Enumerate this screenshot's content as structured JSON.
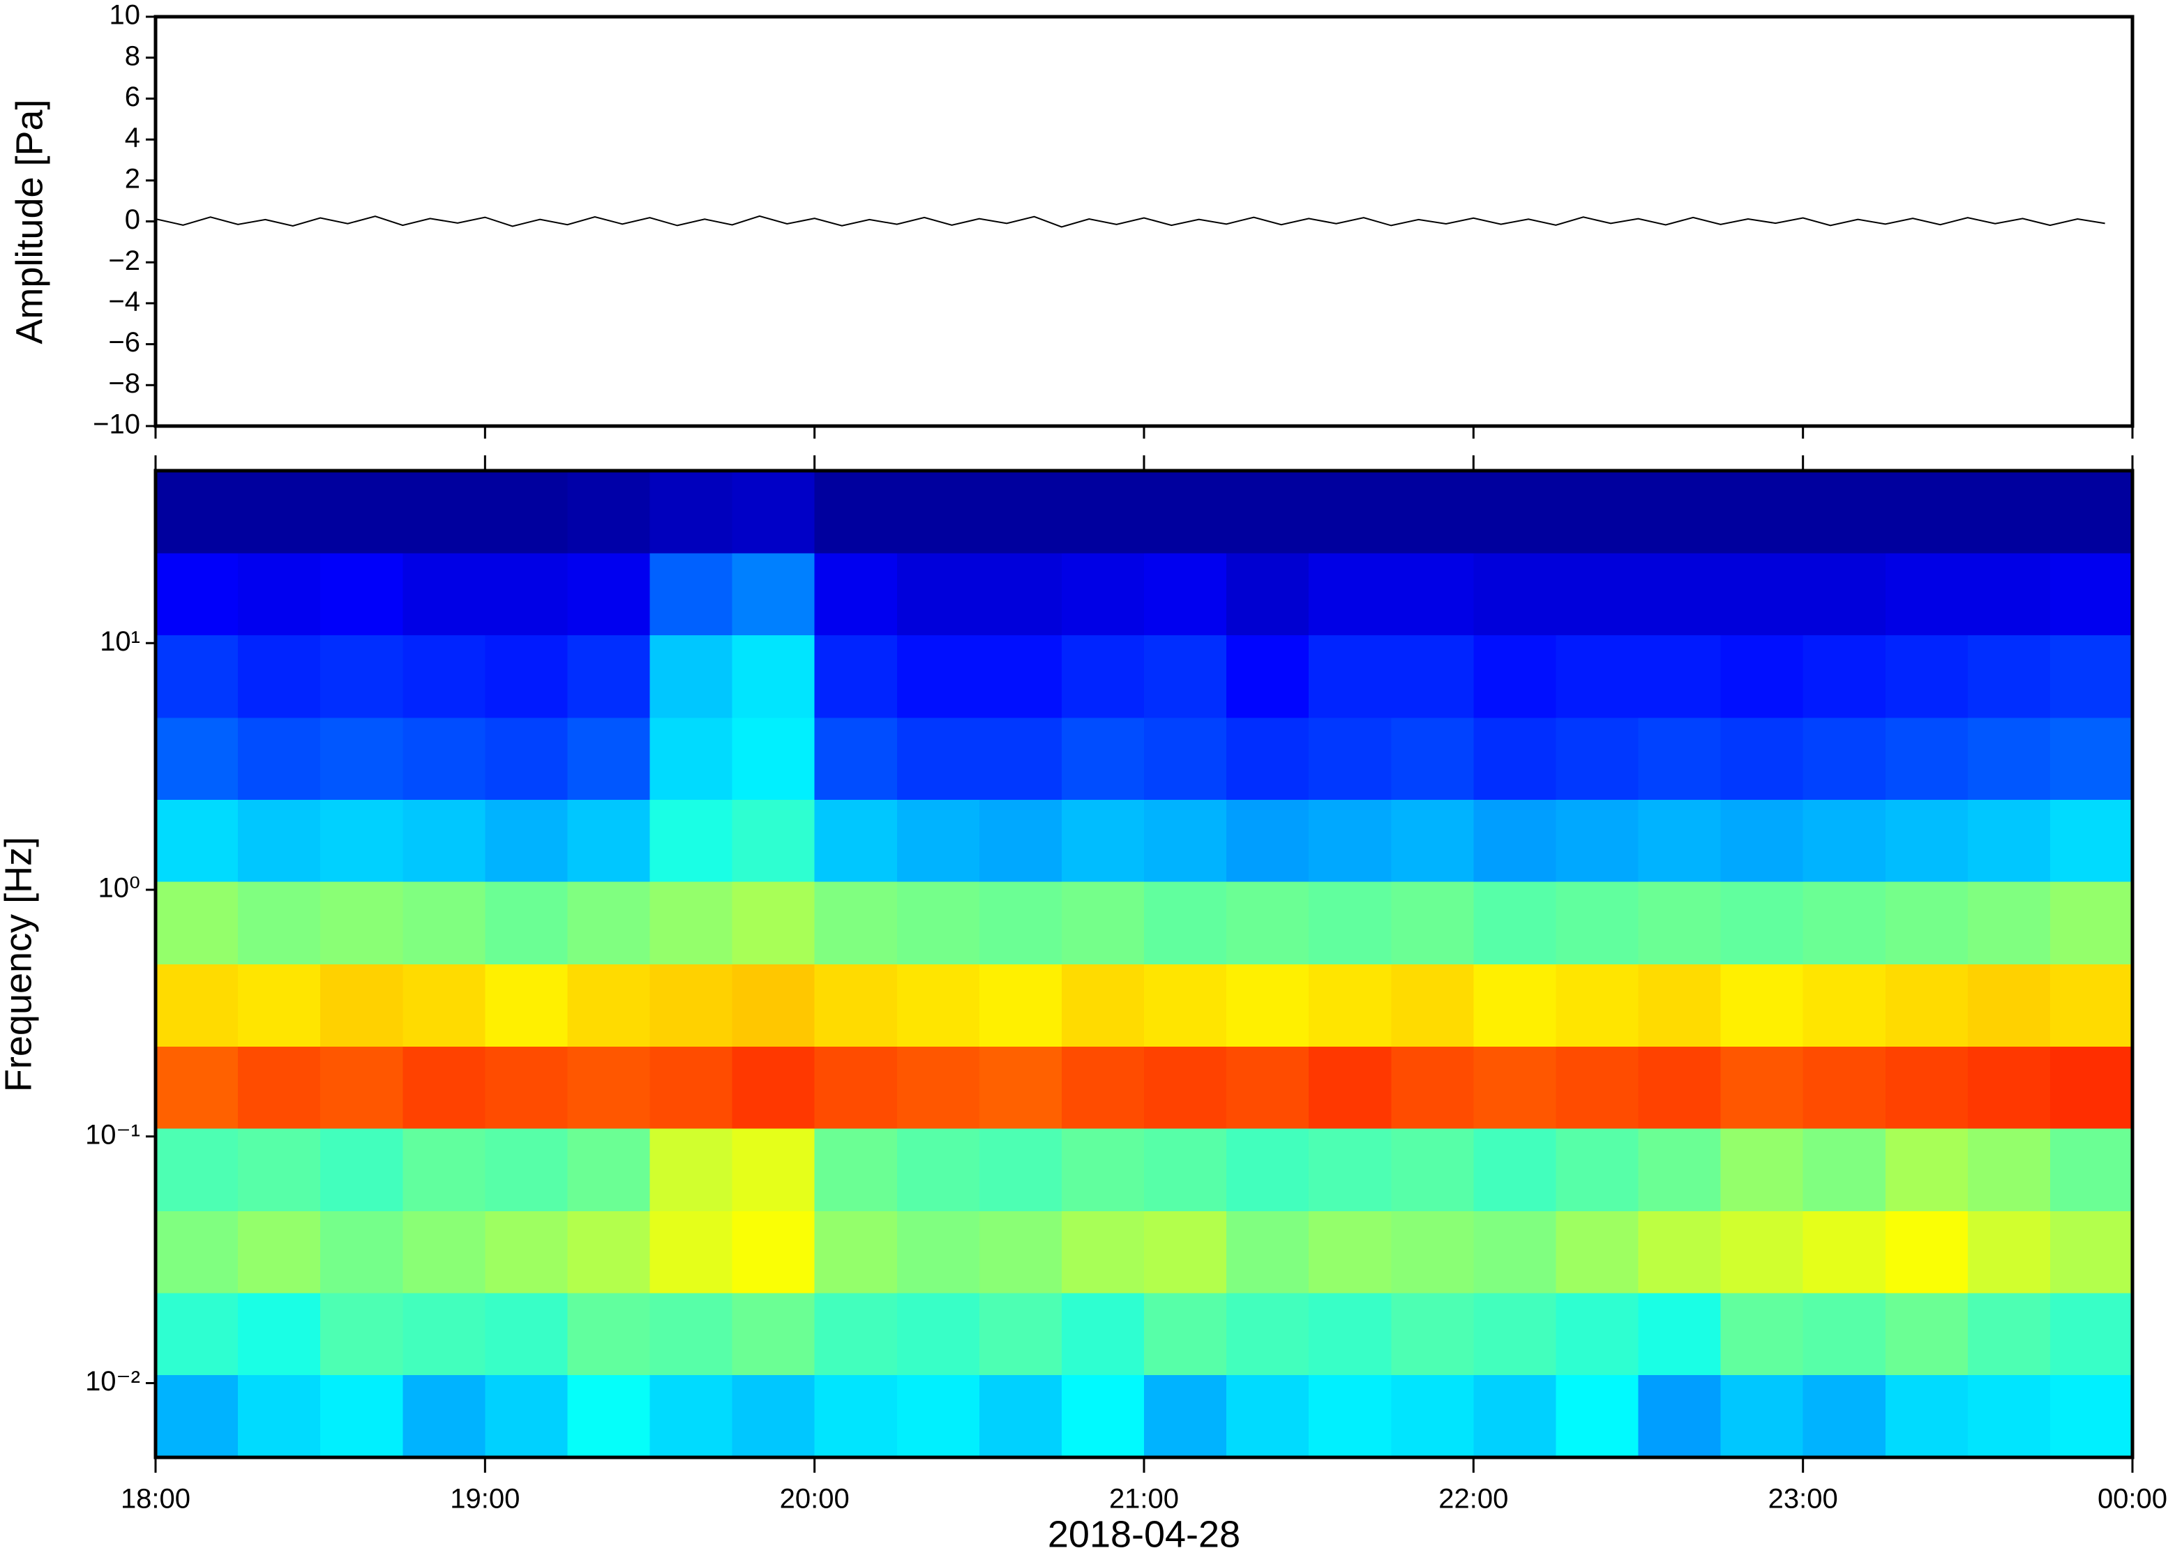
{
  "chart_data": [
    {
      "type": "line",
      "ylabel": "Amplitude [Pa]",
      "xlim": [
        0,
        360
      ],
      "ylim": [
        -10,
        10
      ],
      "yticks": [
        {
          "value": -10,
          "label": "−10"
        },
        {
          "value": -8,
          "label": "−8"
        },
        {
          "value": -6,
          "label": "−6"
        },
        {
          "value": -4,
          "label": "−4"
        },
        {
          "value": -2,
          "label": "−2"
        },
        0,
        2,
        4,
        6,
        8,
        10
      ],
      "x": [
        0,
        5,
        10,
        15,
        20,
        25,
        30,
        35,
        40,
        45,
        50,
        55,
        60,
        65,
        70,
        75,
        80,
        85,
        90,
        95,
        100,
        105,
        110,
        115,
        120,
        125,
        130,
        135,
        140,
        145,
        150,
        155,
        160,
        165,
        170,
        175,
        180,
        185,
        190,
        195,
        200,
        205,
        210,
        215,
        220,
        225,
        230,
        235,
        240,
        245,
        250,
        255,
        260,
        265,
        270,
        275,
        280,
        285,
        290,
        295,
        300,
        305,
        310,
        315,
        320,
        325,
        330,
        335,
        340,
        345,
        350,
        355
      ],
      "series": [
        {
          "color": "#000000",
          "values": [
            0.12,
            -0.18,
            0.21,
            -0.15,
            0.09,
            -0.22,
            0.17,
            -0.11,
            0.25,
            -0.19,
            0.14,
            -0.08,
            0.2,
            -0.24,
            0.1,
            -0.16,
            0.22,
            -0.13,
            0.18,
            -0.2,
            0.11,
            -0.17,
            0.26,
            -0.12,
            0.15,
            -0.21,
            0.09,
            -0.14,
            0.19,
            -0.18,
            0.13,
            -0.1,
            0.23,
            -0.27,
            0.12,
            -0.15,
            0.17,
            -0.19,
            0.1,
            -0.13,
            0.2,
            -0.16,
            0.14,
            -0.11,
            0.18,
            -0.2,
            0.09,
            -0.12,
            0.16,
            -0.14,
            0.11,
            -0.18,
            0.21,
            -0.1,
            0.13,
            -0.17,
            0.19,
            -0.15,
            0.12,
            -0.09,
            0.17,
            -0.2,
            0.1,
            -0.13,
            0.15,
            -0.16,
            0.18,
            -0.11,
            0.14,
            -0.19,
            0.12,
            -0.1
          ]
        }
      ]
    },
    {
      "type": "heatmap",
      "ylabel": "Frequency [Hz]",
      "xlabel": "2018-04-28",
      "xlim": [
        0,
        360
      ],
      "xticks": [
        {
          "value": 0,
          "label": "18:00"
        },
        {
          "value": 60,
          "label": "19:00"
        },
        {
          "value": 120,
          "label": "20:00"
        },
        {
          "value": 180,
          "label": "21:00"
        },
        {
          "value": 240,
          "label": "22:00"
        },
        {
          "value": 300,
          "label": "23:00"
        },
        {
          "value": 360,
          "label": "00:00"
        }
      ],
      "yscale": "log",
      "ylim": [
        0.005,
        50
      ],
      "yticks": [
        {
          "value": 0.01,
          "label": "10⁻²"
        },
        {
          "value": 0.1,
          "label": "10⁻¹"
        },
        {
          "value": 1,
          "label": "10⁰"
        },
        {
          "value": 10,
          "label": "10¹"
        }
      ],
      "colormap": "jet",
      "zlim": [
        0,
        1
      ],
      "xbins": [
        0,
        15,
        30,
        45,
        60,
        75,
        90,
        105,
        120,
        135,
        150,
        165,
        180,
        195,
        210,
        225,
        240,
        255,
        270,
        285,
        300,
        315,
        330,
        345,
        360
      ],
      "ybins": [
        0.005,
        0.0108,
        0.0232,
        0.05,
        0.108,
        0.232,
        0.5,
        1.08,
        2.32,
        5,
        10.8,
        23.2,
        50
      ],
      "values": [
        [
          0.3,
          0.34,
          0.36,
          0.3,
          0.33,
          0.38,
          0.34,
          0.32,
          0.35,
          0.36,
          0.33,
          0.37,
          0.3,
          0.34,
          0.36,
          0.35,
          0.33,
          0.37,
          0.28,
          0.32,
          0.3,
          0.34,
          0.35,
          0.36
        ],
        [
          0.42,
          0.4,
          0.45,
          0.44,
          0.43,
          0.47,
          0.46,
          0.48,
          0.44,
          0.43,
          0.45,
          0.42,
          0.46,
          0.44,
          0.43,
          0.45,
          0.44,
          0.42,
          0.4,
          0.47,
          0.46,
          0.48,
          0.45,
          0.43
        ],
        [
          0.5,
          0.52,
          0.49,
          0.51,
          0.53,
          0.55,
          0.6,
          0.62,
          0.52,
          0.5,
          0.51,
          0.54,
          0.55,
          0.5,
          0.52,
          0.51,
          0.5,
          0.53,
          0.56,
          0.58,
          0.6,
          0.62,
          0.58,
          0.55
        ],
        [
          0.45,
          0.46,
          0.44,
          0.47,
          0.46,
          0.48,
          0.58,
          0.6,
          0.48,
          0.46,
          0.45,
          0.47,
          0.46,
          0.44,
          0.45,
          0.46,
          0.44,
          0.46,
          0.48,
          0.52,
          0.5,
          0.54,
          0.52,
          0.48
        ],
        [
          0.78,
          0.8,
          0.79,
          0.81,
          0.8,
          0.79,
          0.8,
          0.82,
          0.8,
          0.79,
          0.78,
          0.8,
          0.81,
          0.8,
          0.82,
          0.8,
          0.79,
          0.8,
          0.81,
          0.79,
          0.8,
          0.81,
          0.82,
          0.83
        ],
        [
          0.66,
          0.65,
          0.67,
          0.66,
          0.64,
          0.66,
          0.67,
          0.68,
          0.66,
          0.65,
          0.64,
          0.66,
          0.65,
          0.64,
          0.65,
          0.66,
          0.64,
          0.65,
          0.66,
          0.64,
          0.65,
          0.66,
          0.67,
          0.66
        ],
        [
          0.52,
          0.5,
          0.51,
          0.5,
          0.48,
          0.5,
          0.52,
          0.54,
          0.5,
          0.49,
          0.48,
          0.49,
          0.47,
          0.48,
          0.47,
          0.48,
          0.46,
          0.47,
          0.48,
          0.47,
          0.48,
          0.49,
          0.5,
          0.52
        ],
        [
          0.34,
          0.32,
          0.33,
          0.32,
          0.3,
          0.32,
          0.4,
          0.42,
          0.32,
          0.3,
          0.29,
          0.31,
          0.3,
          0.28,
          0.29,
          0.3,
          0.28,
          0.29,
          0.3,
          0.29,
          0.3,
          0.31,
          0.32,
          0.34
        ],
        [
          0.22,
          0.2,
          0.21,
          0.2,
          0.19,
          0.21,
          0.34,
          0.36,
          0.2,
          0.18,
          0.18,
          0.2,
          0.19,
          0.17,
          0.18,
          0.19,
          0.17,
          0.18,
          0.19,
          0.18,
          0.19,
          0.2,
          0.21,
          0.22
        ],
        [
          0.18,
          0.16,
          0.17,
          0.16,
          0.15,
          0.17,
          0.32,
          0.35,
          0.16,
          0.14,
          0.14,
          0.16,
          0.17,
          0.13,
          0.16,
          0.16,
          0.14,
          0.15,
          0.15,
          0.14,
          0.15,
          0.16,
          0.17,
          0.18
        ],
        [
          0.12,
          0.11,
          0.12,
          0.1,
          0.1,
          0.11,
          0.22,
          0.25,
          0.11,
          0.09,
          0.09,
          0.1,
          0.11,
          0.08,
          0.1,
          0.1,
          0.09,
          0.09,
          0.09,
          0.09,
          0.09,
          0.1,
          0.1,
          0.11
        ],
        [
          0.03,
          0.03,
          0.03,
          0.03,
          0.03,
          0.04,
          0.06,
          0.07,
          0.03,
          0.03,
          0.03,
          0.03,
          0.03,
          0.03,
          0.03,
          0.03,
          0.03,
          0.03,
          0.03,
          0.03,
          0.03,
          0.03,
          0.03,
          0.03
        ]
      ]
    }
  ]
}
